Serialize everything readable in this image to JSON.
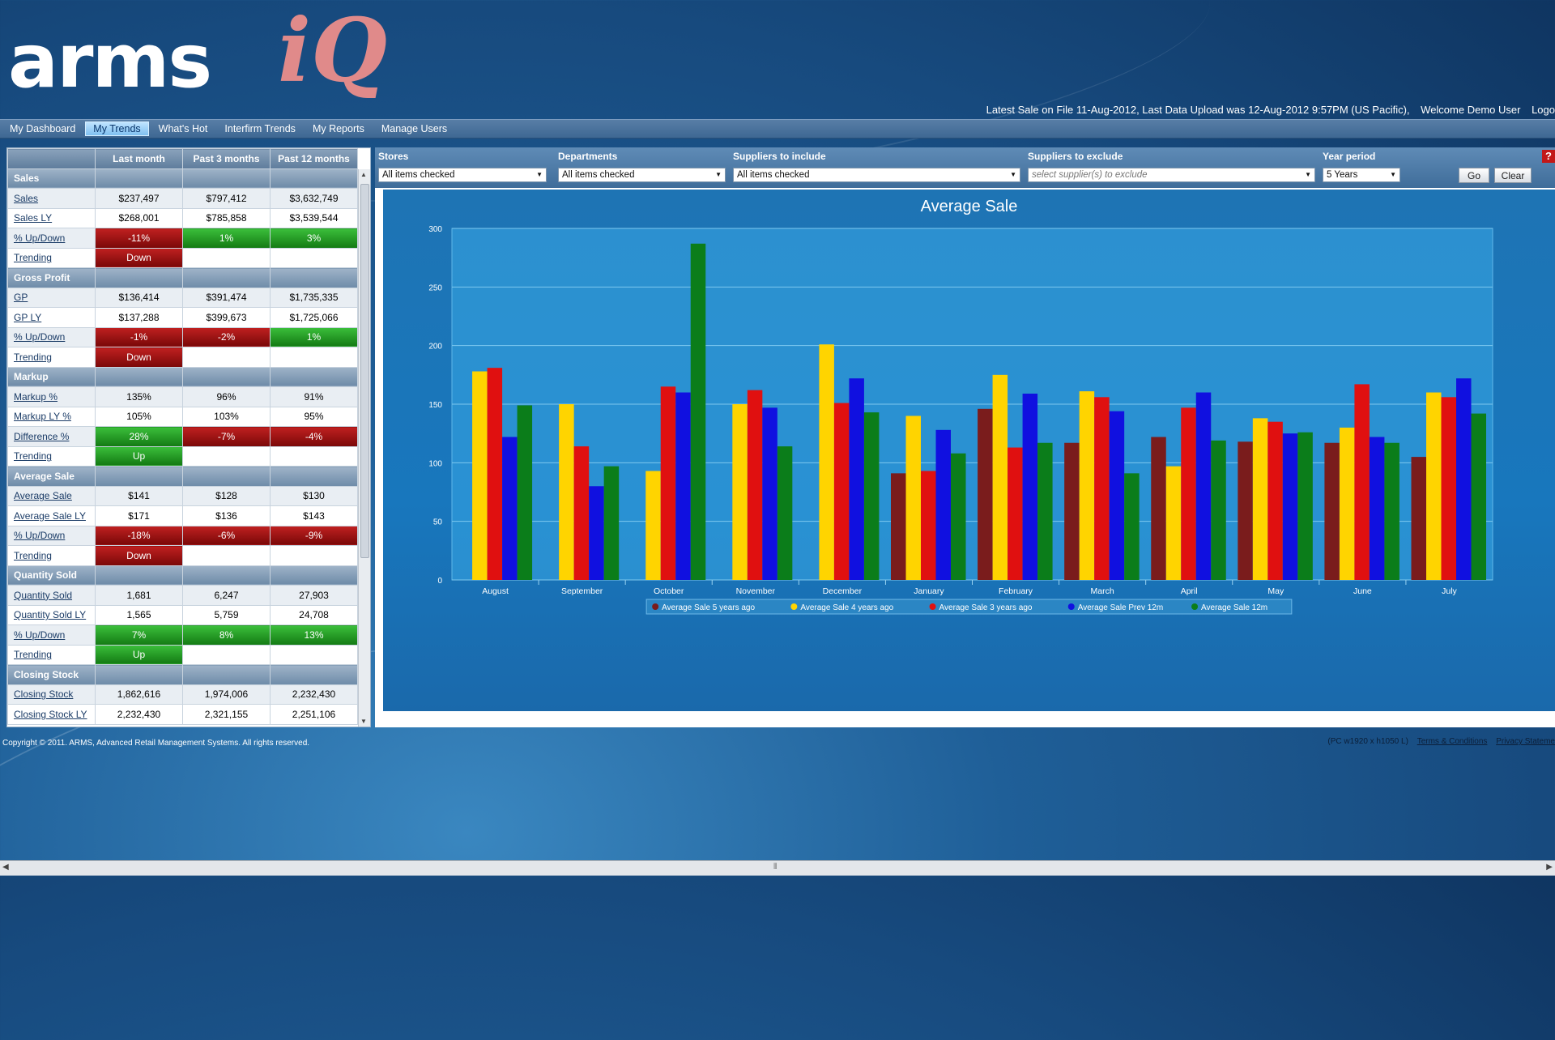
{
  "brand": {
    "name": "arms",
    "name_accent": "iQ"
  },
  "status": {
    "latest_sale": "Latest Sale on File 11-Aug-2012, Last Data Upload was 12-Aug-2012 9:57PM (US Pacific),",
    "welcome": "Welcome Demo User",
    "logout": "Logo"
  },
  "nav": [
    "My Dashboard",
    "My Trends",
    "What's Hot",
    "Interfirm Trends",
    "My Reports",
    "Manage Users"
  ],
  "kpi": {
    "columns": [
      "Last month",
      "Past 3 months",
      "Past 12 months"
    ],
    "sections": [
      {
        "title": "Sales",
        "rows": [
          {
            "label": "Sales",
            "values": [
              "$237,497",
              "$797,412",
              "$3,632,749"
            ]
          },
          {
            "label": "Sales LY",
            "values": [
              "$268,001",
              "$785,858",
              "$3,539,544"
            ]
          },
          {
            "label": "% Up/Down",
            "values": [
              "-11%",
              "1%",
              "3%"
            ]
          },
          {
            "label": "Trending",
            "values": [
              "Down",
              "",
              ""
            ]
          }
        ]
      },
      {
        "title": "Gross Profit",
        "rows": [
          {
            "label": "GP",
            "values": [
              "$136,414",
              "$391,474",
              "$1,735,335"
            ]
          },
          {
            "label": "GP LY",
            "values": [
              "$137,288",
              "$399,673",
              "$1,725,066"
            ]
          },
          {
            "label": "% Up/Down",
            "values": [
              "-1%",
              "-2%",
              "1%"
            ]
          },
          {
            "label": "Trending",
            "values": [
              "Down",
              "",
              ""
            ]
          }
        ]
      },
      {
        "title": "Markup",
        "rows": [
          {
            "label": "Markup %",
            "values": [
              "135%",
              "96%",
              "91%"
            ]
          },
          {
            "label": "Markup LY %",
            "values": [
              "105%",
              "103%",
              "95%"
            ]
          },
          {
            "label": "Difference %",
            "values": [
              "28%",
              "-7%",
              "-4%"
            ]
          },
          {
            "label": "Trending",
            "values": [
              "Up",
              "",
              ""
            ]
          }
        ]
      },
      {
        "title": "Average Sale",
        "rows": [
          {
            "label": "Average Sale",
            "values": [
              "$141",
              "$128",
              "$130"
            ]
          },
          {
            "label": "Average Sale LY",
            "values": [
              "$171",
              "$136",
              "$143"
            ]
          },
          {
            "label": "% Up/Down",
            "values": [
              "-18%",
              "-6%",
              "-9%"
            ]
          },
          {
            "label": "Trending",
            "values": [
              "Down",
              "",
              ""
            ]
          }
        ]
      },
      {
        "title": "Quantity Sold",
        "rows": [
          {
            "label": "Quantity Sold",
            "values": [
              "1,681",
              "6,247",
              "27,903"
            ]
          },
          {
            "label": "Quantity Sold LY",
            "values": [
              "1,565",
              "5,759",
              "24,708"
            ]
          },
          {
            "label": "% Up/Down",
            "values": [
              "7%",
              "8%",
              "13%"
            ]
          },
          {
            "label": "Trending",
            "values": [
              "Up",
              "",
              ""
            ]
          }
        ]
      },
      {
        "title": "Closing Stock",
        "rows": [
          {
            "label": "Closing Stock",
            "values": [
              "1,862,616",
              "1,974,006",
              "2,232,430"
            ]
          },
          {
            "label": "Closing Stock LY",
            "values": [
              "2,232,430",
              "2,321,155",
              "2,251,106"
            ]
          }
        ]
      }
    ]
  },
  "filters": {
    "stores": {
      "label": "Stores",
      "value": "All items checked"
    },
    "departments": {
      "label": "Departments",
      "value": "All items checked"
    },
    "suppliers_include": {
      "label": "Suppliers to include",
      "value": "All items checked"
    },
    "suppliers_exclude": {
      "label": "Suppliers to exclude",
      "placeholder": "select supplier(s) to exclude"
    },
    "year_period": {
      "label": "Year period",
      "value": "5 Years"
    },
    "go": "Go",
    "clear": "Clear",
    "help": "?"
  },
  "chart_data": {
    "type": "bar",
    "title": "Average Sale",
    "categories": [
      "August",
      "September",
      "October",
      "November",
      "December",
      "January",
      "February",
      "March",
      "April",
      "May",
      "June",
      "July"
    ],
    "ylim": [
      0,
      300
    ],
    "yticks": [
      0,
      50,
      100,
      150,
      200,
      250,
      300
    ],
    "grid": true,
    "legend": "bottom",
    "series": [
      {
        "name": "Average Sale 5 years ago",
        "color": "#7a1c1c",
        "values": [
          null,
          null,
          null,
          null,
          null,
          91,
          146,
          117,
          122,
          118,
          117,
          105
        ]
      },
      {
        "name": "Average Sale 4 years ago",
        "color": "#ffd400",
        "values": [
          178,
          150,
          93,
          150,
          201,
          140,
          175,
          161,
          97,
          138,
          130,
          160
        ]
      },
      {
        "name": "Average Sale 3 years ago",
        "color": "#e01010",
        "values": [
          181,
          114,
          165,
          162,
          151,
          93,
          113,
          156,
          147,
          135,
          167,
          156
        ]
      },
      {
        "name": "Average Sale Prev 12m",
        "color": "#1010e0",
        "values": [
          122,
          80,
          160,
          147,
          172,
          128,
          159,
          144,
          160,
          125,
          122,
          172
        ]
      },
      {
        "name": "Average Sale 12m",
        "color": "#0b7d1a",
        "values": [
          149,
          97,
          287,
          114,
          143,
          108,
          117,
          91,
          119,
          126,
          117,
          142
        ]
      }
    ]
  },
  "footer": {
    "copyright": "Copyright © 2011. ARMS, Advanced Retail Management Systems. All rights reserved.",
    "resolution": "(PC w1920 x h1050 L)",
    "terms": "Terms & Conditions",
    "privacy": "Privacy Stateme"
  }
}
